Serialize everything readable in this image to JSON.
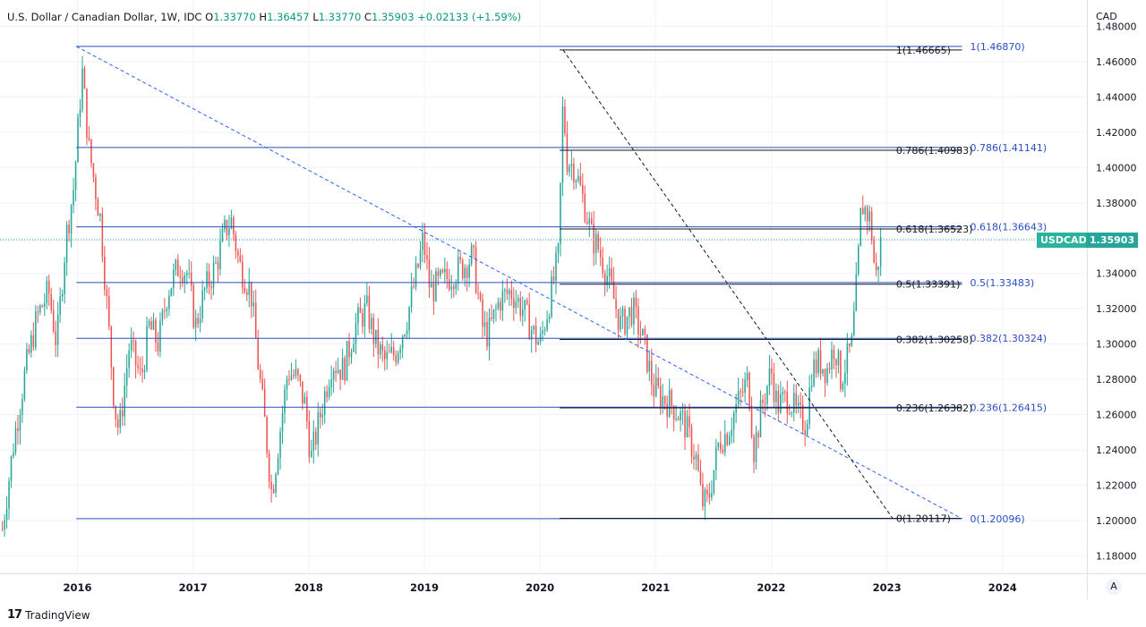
{
  "header": {
    "title": "U.S. Dollar / Canadian Dollar, 1W, IDC",
    "open_label": "O",
    "open": "1.33770",
    "high_label": "H",
    "high": "1.36457",
    "low_label": "L",
    "low": "1.33770",
    "close_label": "C",
    "close": "1.35903",
    "change": "+0.02133 (+1.59%)"
  },
  "axis_currency": "CAD",
  "price_badge": {
    "symbol": "USDCAD",
    "price": "1.35903",
    "value": 1.35903
  },
  "brand": {
    "logo": "17",
    "name": "TradingView"
  },
  "auto_scale_button": "A",
  "colors": {
    "up": "#26a69a",
    "down": "#ef5350",
    "fib_blue": "#2a4ec2",
    "fib_black": "#131722",
    "trend_blue": "#2962ff"
  },
  "chart_data": {
    "type": "candlestick",
    "timeframe": "1W",
    "y_range": [
      1.17,
      1.495
    ],
    "y_ticks": [
      "1.18000",
      "1.20000",
      "1.22000",
      "1.24000",
      "1.26000",
      "1.28000",
      "1.30000",
      "1.32000",
      "1.34000",
      "1.36000",
      "1.38000",
      "1.40000",
      "1.42000",
      "1.44000",
      "1.46000",
      "1.48000"
    ],
    "x_range": [
      2015.33,
      2024.73
    ],
    "x_ticks": [
      "2016",
      "2017",
      "2018",
      "2019",
      "2020",
      "2021",
      "2022",
      "2023",
      "2024"
    ],
    "price_path": [
      [
        2015.35,
        1.195
      ],
      [
        2015.45,
        1.245
      ],
      [
        2015.55,
        1.285
      ],
      [
        2015.65,
        1.315
      ],
      [
        2015.75,
        1.33
      ],
      [
        2015.82,
        1.3
      ],
      [
        2015.9,
        1.36
      ],
      [
        2015.97,
        1.39
      ],
      [
        2016.04,
        1.455
      ],
      [
        2016.1,
        1.41
      ],
      [
        2016.2,
        1.37
      ],
      [
        2016.28,
        1.3
      ],
      [
        2016.32,
        1.265
      ],
      [
        2016.36,
        1.25
      ],
      [
        2016.45,
        1.3
      ],
      [
        2016.55,
        1.28
      ],
      [
        2016.62,
        1.31
      ],
      [
        2016.7,
        1.3
      ],
      [
        2016.78,
        1.33
      ],
      [
        2016.88,
        1.345
      ],
      [
        2016.95,
        1.34
      ],
      [
        2017.02,
        1.31
      ],
      [
        2017.1,
        1.33
      ],
      [
        2017.2,
        1.345
      ],
      [
        2017.28,
        1.365
      ],
      [
        2017.33,
        1.37
      ],
      [
        2017.4,
        1.345
      ],
      [
        2017.5,
        1.33
      ],
      [
        2017.56,
        1.29
      ],
      [
        2017.62,
        1.255
      ],
      [
        2017.68,
        1.215
      ],
      [
        2017.75,
        1.25
      ],
      [
        2017.82,
        1.285
      ],
      [
        2017.9,
        1.28
      ],
      [
        2017.97,
        1.265
      ],
      [
        2018.02,
        1.235
      ],
      [
        2018.1,
        1.26
      ],
      [
        2018.2,
        1.29
      ],
      [
        2018.3,
        1.285
      ],
      [
        2018.4,
        1.31
      ],
      [
        2018.5,
        1.32
      ],
      [
        2018.58,
        1.3
      ],
      [
        2018.66,
        1.29
      ],
      [
        2018.75,
        1.295
      ],
      [
        2018.85,
        1.315
      ],
      [
        2018.95,
        1.345
      ],
      [
        2018.99,
        1.36
      ],
      [
        2019.05,
        1.33
      ],
      [
        2019.15,
        1.335
      ],
      [
        2019.25,
        1.34
      ],
      [
        2019.35,
        1.345
      ],
      [
        2019.42,
        1.35
      ],
      [
        2019.5,
        1.31
      ],
      [
        2019.55,
        1.305
      ],
      [
        2019.65,
        1.325
      ],
      [
        2019.75,
        1.33
      ],
      [
        2019.85,
        1.32
      ],
      [
        2019.95,
        1.305
      ],
      [
        2020.0,
        1.3
      ],
      [
        2020.1,
        1.33
      ],
      [
        2020.16,
        1.35
      ],
      [
        2020.2,
        1.44
      ],
      [
        2020.23,
        1.405
      ],
      [
        2020.3,
        1.4
      ],
      [
        2020.4,
        1.375
      ],
      [
        2020.45,
        1.36
      ],
      [
        2020.5,
        1.355
      ],
      [
        2020.6,
        1.335
      ],
      [
        2020.7,
        1.31
      ],
      [
        2020.8,
        1.32
      ],
      [
        2020.9,
        1.3
      ],
      [
        2020.98,
        1.275
      ],
      [
        2021.05,
        1.27
      ],
      [
        2021.15,
        1.265
      ],
      [
        2021.25,
        1.255
      ],
      [
        2021.35,
        1.235
      ],
      [
        2021.4,
        1.21
      ],
      [
        2021.45,
        1.21
      ],
      [
        2021.55,
        1.245
      ],
      [
        2021.62,
        1.25
      ],
      [
        2021.7,
        1.265
      ],
      [
        2021.8,
        1.28
      ],
      [
        2021.85,
        1.24
      ],
      [
        2021.92,
        1.265
      ],
      [
        2022.0,
        1.285
      ],
      [
        2022.05,
        1.265
      ],
      [
        2022.15,
        1.27
      ],
      [
        2022.22,
        1.26
      ],
      [
        2022.3,
        1.255
      ],
      [
        2022.35,
        1.285
      ],
      [
        2022.42,
        1.29
      ],
      [
        2022.48,
        1.285
      ],
      [
        2022.55,
        1.3
      ],
      [
        2022.6,
        1.28
      ],
      [
        2022.65,
        1.29
      ],
      [
        2022.7,
        1.3
      ],
      [
        2022.75,
        1.345
      ],
      [
        2022.78,
        1.38
      ],
      [
        2022.82,
        1.375
      ],
      [
        2022.86,
        1.37
      ],
      [
        2022.89,
        1.345
      ],
      [
        2022.91,
        1.338
      ],
      [
        2022.93,
        1.35
      ],
      [
        2022.95,
        1.359
      ]
    ]
  },
  "fib_a": {
    "color": "#2a4ec2",
    "x_start": 2015.99,
    "x_end": 2023.65,
    "label_x": 2023.72,
    "levels": [
      {
        "price": 1.4687,
        "label": "1(1.46870)"
      },
      {
        "price": 1.41141,
        "label": "0.786(1.41141)"
      },
      {
        "price": 1.36643,
        "label": "0.618(1.36643)"
      },
      {
        "price": 1.33483,
        "label": "0.5(1.33483)"
      },
      {
        "price": 1.30324,
        "label": "0.382(1.30324)"
      },
      {
        "price": 1.26415,
        "label": "0.236(1.26415)"
      },
      {
        "price": 1.20096,
        "label": "0(1.20096)"
      }
    ]
  },
  "fib_b": {
    "color": "#131722",
    "x_start": 2020.17,
    "x_end": 2023.65,
    "label_x": 2023.08,
    "levels": [
      {
        "price": 1.46665,
        "label": "1(1.46665)"
      },
      {
        "price": 1.40983,
        "label": "0.786(1.40983)"
      },
      {
        "price": 1.36523,
        "label": "0.618(1.36523)"
      },
      {
        "price": 1.33391,
        "label": "0.5(1.33391)"
      },
      {
        "price": 1.30258,
        "label": "0.382(1.30258)"
      },
      {
        "price": 1.26382,
        "label": "0.236(1.26382)"
      },
      {
        "price": 1.20117,
        "label": "0(1.20117)"
      }
    ]
  },
  "trendlines": [
    {
      "name": "blue-dashed-trendline",
      "color": "#2962ff",
      "from": [
        2015.99,
        1.4687
      ],
      "to": [
        2023.65,
        1.20096
      ]
    },
    {
      "name": "black-dashed-trendline",
      "color": "#131722",
      "from": [
        2020.2,
        1.46665
      ],
      "to": [
        2023.05,
        1.20117
      ]
    }
  ]
}
